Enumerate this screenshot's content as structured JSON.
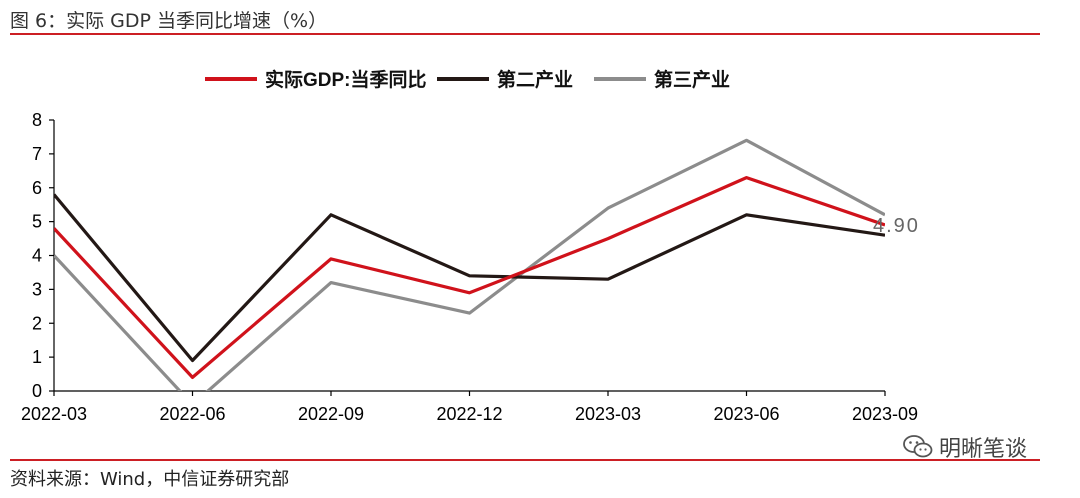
{
  "figure": {
    "title": "图 6：实际 GDP 当季同比增速（%）",
    "source": "资料来源：Wind，中信证券研究部",
    "watermark": "明晰笔谈"
  },
  "colors": {
    "rule": "#cc1f24",
    "gdp": "#d0121b",
    "secondary": "#231815",
    "tertiary": "#8c8c8c",
    "annotation": "#666666"
  },
  "chart_data": {
    "type": "line",
    "categories": [
      "2022-03",
      "2022-06",
      "2022-09",
      "2022-12",
      "2023-03",
      "2023-06",
      "2023-09"
    ],
    "ylim": [
      0,
      8
    ],
    "yticks": [
      0,
      1,
      2,
      3,
      4,
      5,
      6,
      7,
      8
    ],
    "grid": false,
    "legend_position": "top",
    "series": [
      {
        "name": "实际GDP:当季同比",
        "color": "#d0121b",
        "values": [
          4.8,
          0.4,
          3.9,
          2.9,
          4.5,
          6.3,
          4.9
        ]
      },
      {
        "name": "第二产业",
        "color": "#231815",
        "values": [
          5.8,
          0.9,
          5.2,
          3.4,
          3.3,
          5.2,
          4.6
        ]
      },
      {
        "name": "第三产业",
        "color": "#8c8c8c",
        "values": [
          4.0,
          -0.4,
          3.2,
          2.3,
          5.4,
          7.4,
          5.2
        ]
      }
    ],
    "annotations": [
      {
        "text": "4.90",
        "category": "2023-09",
        "value": 4.9
      }
    ]
  }
}
